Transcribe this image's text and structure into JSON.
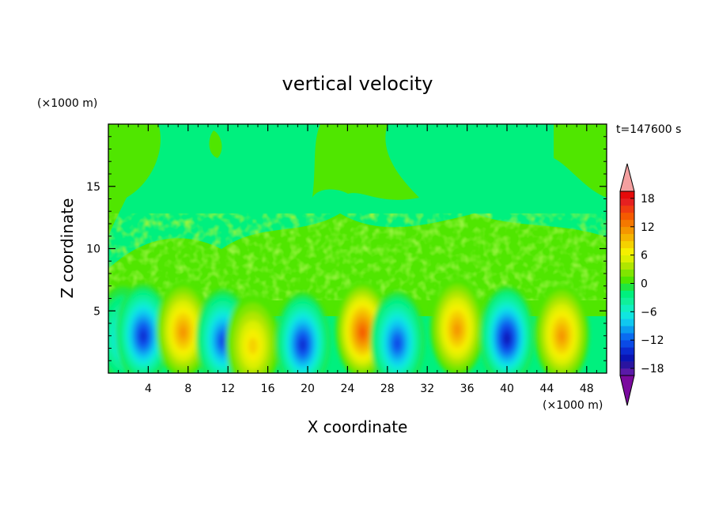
{
  "chart_data": {
    "type": "heatmap",
    "title": "vertical velocity",
    "time_label": "t=147600 s",
    "xlabel": "X coordinate",
    "ylabel": "Z coordinate",
    "x_unit": "(×1000 m)",
    "y_unit": "(×1000 m)",
    "xlim": [
      0,
      50
    ],
    "ylim": [
      0,
      20
    ],
    "x_ticks": [
      4,
      8,
      12,
      16,
      20,
      24,
      28,
      32,
      36,
      40,
      44,
      48
    ],
    "y_ticks": [
      5,
      10,
      15
    ],
    "colorbar": {
      "levels": [
        -21,
        -19.5,
        -18,
        -16.5,
        -15,
        -13.5,
        -12,
        -10.5,
        -9,
        -7.5,
        -6,
        -4.5,
        -3,
        -1.5,
        0,
        1.5,
        3,
        4.5,
        6,
        7.5,
        9,
        10.5,
        12,
        13.5,
        15,
        16.5,
        18,
        19.5,
        21
      ],
      "tick_labels": [
        "18",
        "12",
        "6",
        "0",
        "−6",
        "−12",
        "−18"
      ],
      "tick_values": [
        18,
        12,
        6,
        0,
        -6,
        -12,
        -18
      ],
      "colors": [
        "#7a0a9e",
        "#5a1aa8",
        "#2a14a0",
        "#0a14b4",
        "#0a2ad0",
        "#0a4ae6",
        "#0a6cf0",
        "#0a9cf0",
        "#10c8f0",
        "#10e6e0",
        "#10f0c0",
        "#10f09a",
        "#00f07e",
        "#20e640",
        "#50e600",
        "#80e600",
        "#b0e600",
        "#dcf000",
        "#f5f000",
        "#f5d200",
        "#f5b400",
        "#f59600",
        "#f57800",
        "#f55a00",
        "#f03c10",
        "#e62020",
        "#e60a0a",
        "#f4a0a0"
      ]
    },
    "cells": [
      {
        "x": 1.5,
        "z": 3.0,
        "w": -8
      },
      {
        "x": 3.5,
        "z": 3.2,
        "w": -14
      },
      {
        "x": 7.5,
        "z": 3.5,
        "w": 10
      },
      {
        "x": 11.5,
        "z": 2.8,
        "w": -12
      },
      {
        "x": 14.5,
        "z": 2.4,
        "w": 8
      },
      {
        "x": 19.5,
        "z": 2.5,
        "w": -13
      },
      {
        "x": 25.5,
        "z": 3.5,
        "w": 13
      },
      {
        "x": 29.0,
        "z": 2.6,
        "w": -12
      },
      {
        "x": 35.0,
        "z": 3.7,
        "w": 11
      },
      {
        "x": 40.0,
        "z": 3.0,
        "w": -15
      },
      {
        "x": 45.5,
        "z": 3.2,
        "w": 10
      }
    ]
  }
}
